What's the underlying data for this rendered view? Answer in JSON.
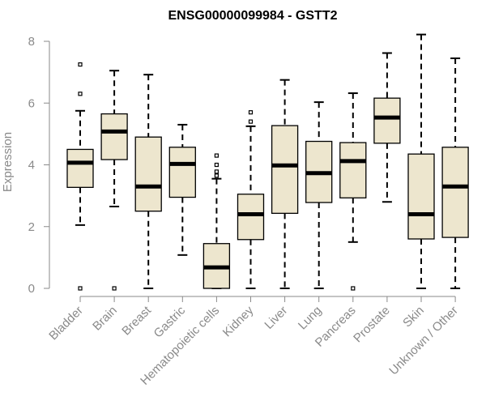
{
  "chart_data": {
    "type": "boxplot",
    "title": "ENSG00000099984 - GSTT2",
    "xlabel": "",
    "ylabel": "Expression",
    "ylim": [
      0,
      8
    ],
    "yticks": [
      0,
      2,
      4,
      6,
      8
    ],
    "ytick_labels": [
      "0",
      "2",
      "4",
      "6",
      "8"
    ],
    "grid": false,
    "colors": {
      "box_fill": "#ede6ce",
      "stroke": "#000000",
      "axis": "#8a8a8a"
    },
    "categories": [
      "Bladder",
      "Brain",
      "Breast",
      "Gastric",
      "Hematopoietic cells",
      "Kidney",
      "Liver",
      "Lung",
      "Pancreas",
      "Prostate",
      "Skin",
      "Unknown / Other"
    ],
    "boxes": [
      {
        "name": "Bladder",
        "whisker_low": 2.05,
        "q1": 3.27,
        "median": 4.07,
        "q3": 4.5,
        "whisker_high": 5.75,
        "outliers": [
          0.0,
          6.3,
          7.25
        ]
      },
      {
        "name": "Brain",
        "whisker_low": 2.65,
        "q1": 4.17,
        "median": 5.08,
        "q3": 5.65,
        "whisker_high": 7.05,
        "outliers": [
          0.0
        ]
      },
      {
        "name": "Breast",
        "whisker_low": 0.0,
        "q1": 2.5,
        "median": 3.3,
        "q3": 4.9,
        "whisker_high": 6.92,
        "outliers": []
      },
      {
        "name": "Gastric",
        "whisker_low": 1.08,
        "q1": 2.95,
        "median": 4.03,
        "q3": 4.57,
        "whisker_high": 5.3,
        "outliers": []
      },
      {
        "name": "Hematopoietic cells",
        "whisker_low": 0.0,
        "q1": 0.0,
        "median": 0.68,
        "q3": 1.45,
        "whisker_high": 3.55,
        "outliers": [
          3.65,
          3.78,
          4.0,
          4.3
        ]
      },
      {
        "name": "Kidney",
        "whisker_low": 0.0,
        "q1": 1.58,
        "median": 2.4,
        "q3": 3.05,
        "whisker_high": 5.25,
        "outliers": [
          5.4,
          5.7
        ]
      },
      {
        "name": "Liver",
        "whisker_low": 0.0,
        "q1": 2.43,
        "median": 3.98,
        "q3": 5.27,
        "whisker_high": 6.75,
        "outliers": []
      },
      {
        "name": "Lung",
        "whisker_low": 0.0,
        "q1": 2.78,
        "median": 3.73,
        "q3": 4.76,
        "whisker_high": 6.03,
        "outliers": []
      },
      {
        "name": "Pancreas",
        "whisker_low": 1.5,
        "q1": 2.93,
        "median": 4.12,
        "q3": 4.72,
        "whisker_high": 6.32,
        "outliers": [
          0.0
        ]
      },
      {
        "name": "Prostate",
        "whisker_low": 2.8,
        "q1": 4.7,
        "median": 5.53,
        "q3": 6.16,
        "whisker_high": 7.62,
        "outliers": []
      },
      {
        "name": "Skin",
        "whisker_low": 0.0,
        "q1": 1.6,
        "median": 2.4,
        "q3": 4.35,
        "whisker_high": 8.22,
        "outliers": []
      },
      {
        "name": "Unknown / Other",
        "whisker_low": 0.0,
        "q1": 1.65,
        "median": 3.3,
        "q3": 4.57,
        "whisker_high": 7.45,
        "outliers": []
      }
    ]
  }
}
